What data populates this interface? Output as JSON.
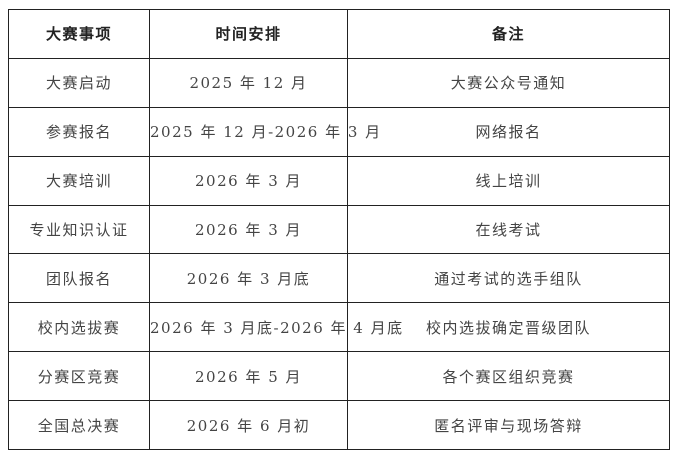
{
  "table": {
    "headers": [
      "大赛事项",
      "时间安排",
      "备注"
    ],
    "rows": [
      [
        "大赛启动",
        "2025 年 12 月",
        "大赛公众号通知"
      ],
      [
        "参赛报名",
        "2025 年 12 月-2026 年 3 月",
        "网络报名"
      ],
      [
        "大赛培训",
        "2026 年 3 月",
        "线上培训"
      ],
      [
        "专业知识认证",
        "2026 年 3 月",
        "在线考试"
      ],
      [
        "团队报名",
        "2026 年 3 月底",
        "通过考试的选手组队"
      ],
      [
        "校内选拔赛",
        "2026 年 3 月底-2026 年 4 月底",
        "校内选拔确定晋级团队"
      ],
      [
        "分赛区竞赛",
        "2026 年 5 月",
        "各个赛区组织竞赛"
      ],
      [
        "全国总决赛",
        "2026 年 6 月初",
        "匿名评审与现场答辩"
      ]
    ]
  }
}
